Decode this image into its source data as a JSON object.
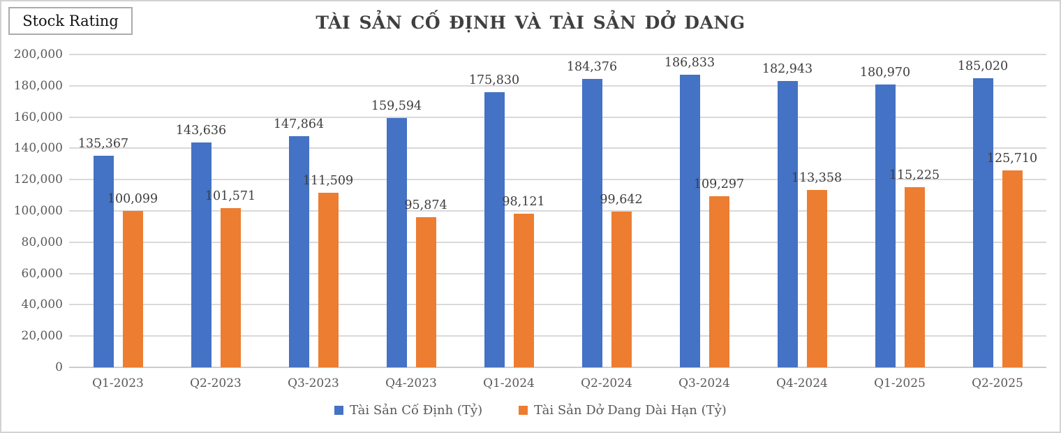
{
  "stock_rating_label": "Stock Rating",
  "chart_data": {
    "type": "bar",
    "title": "TÀI SẢN CỐ ĐỊNH VÀ TÀI SẢN DỞ DANG",
    "categories": [
      "Q1-2023",
      "Q2-2023",
      "Q3-2023",
      "Q4-2023",
      "Q1-2024",
      "Q2-2024",
      "Q3-2024",
      "Q4-2024",
      "Q1-2025",
      "Q2-2025"
    ],
    "series": [
      {
        "name": "Tài Sản Cố Định (Tỷ)",
        "color": "#4472C4",
        "values": [
          135367,
          143636,
          147864,
          159594,
          175830,
          184376,
          186833,
          182943,
          180970,
          185020
        ]
      },
      {
        "name": "Tài Sản Dở Dang Dài Hạn (Tỷ)",
        "color": "#ED7D31",
        "values": [
          100099,
          101571,
          111509,
          95874,
          98121,
          99642,
          109297,
          113358,
          115225,
          125710
        ]
      }
    ],
    "ylim": [
      0,
      200000
    ],
    "y_tick_step": 20000,
    "y_tick_labels": [
      "0",
      "20,000",
      "40,000",
      "60,000",
      "80,000",
      "100,000",
      "120,000",
      "140,000",
      "160,000",
      "180,000",
      "200,000"
    ],
    "grid": true,
    "data_labels": true,
    "legend_position": "bottom",
    "colors": {
      "gridline": "#d9d9d9",
      "tick_text": "#595959",
      "data_label_text": "#3d3d3d",
      "title_text": "#3f3f3f"
    }
  }
}
